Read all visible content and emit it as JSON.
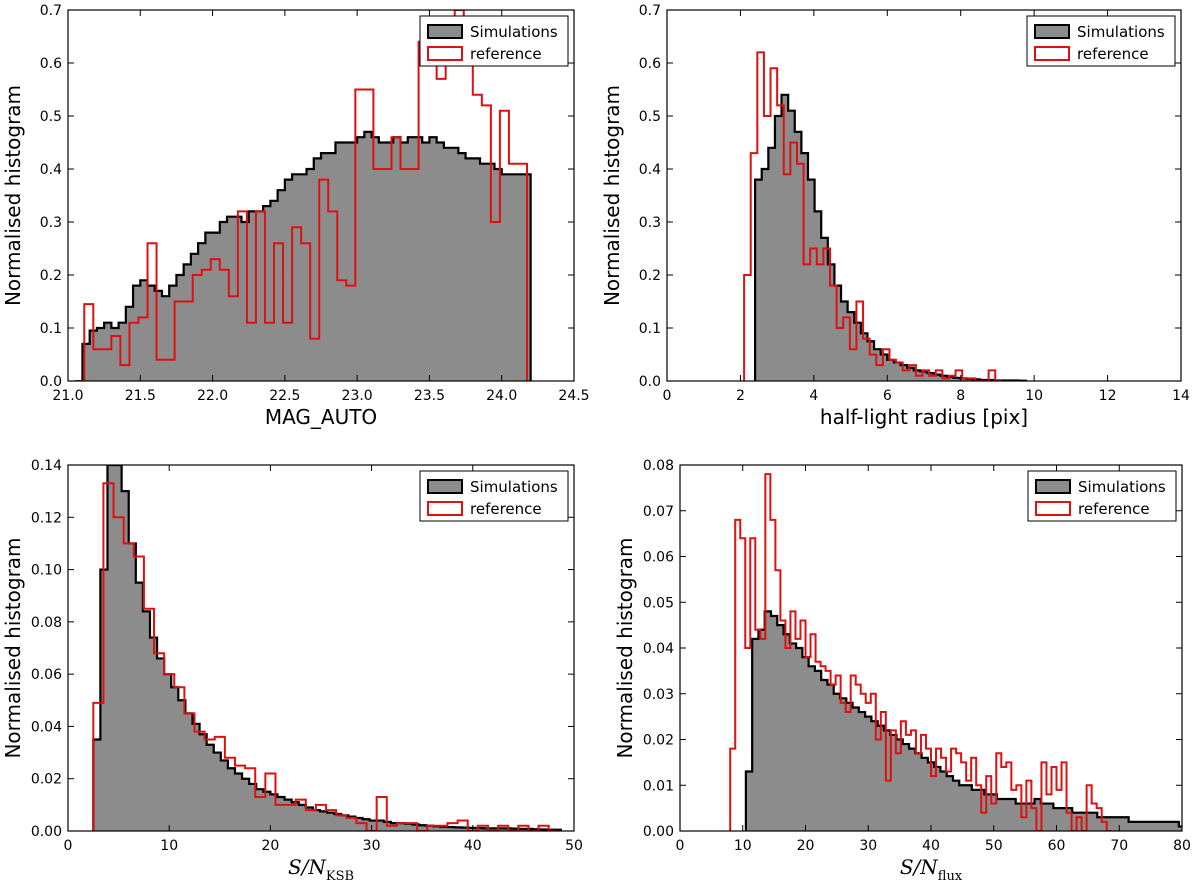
{
  "chart_data": [
    {
      "type": "histogram",
      "xlabel": "MAG_AUTO",
      "ylabel": "Normalised histogram",
      "xlim": [
        21.0,
        24.5
      ],
      "ylim": [
        0.0,
        0.7
      ],
      "xticks": [
        21.0,
        21.5,
        22.0,
        22.5,
        23.0,
        23.5,
        24.0,
        24.5
      ],
      "yticks": [
        0.0,
        0.1,
        0.2,
        0.3,
        0.4,
        0.5,
        0.6,
        0.7
      ],
      "legend": {
        "position": "top-right",
        "entries": [
          "Simulations",
          "reference"
        ]
      },
      "series": [
        {
          "name": "Simulations",
          "style": "filled",
          "color": "#8c8c8c",
          "edge": "#000000",
          "bins": {
            "start": 21.1,
            "step": 0.05
          },
          "values": [
            0.07,
            0.095,
            0.1,
            0.11,
            0.1,
            0.11,
            0.14,
            0.18,
            0.19,
            0.18,
            0.17,
            0.16,
            0.18,
            0.2,
            0.22,
            0.24,
            0.26,
            0.28,
            0.28,
            0.3,
            0.31,
            0.31,
            0.3,
            0.32,
            0.32,
            0.33,
            0.34,
            0.36,
            0.38,
            0.39,
            0.39,
            0.4,
            0.42,
            0.43,
            0.43,
            0.45,
            0.45,
            0.45,
            0.46,
            0.47,
            0.46,
            0.45,
            0.45,
            0.46,
            0.45,
            0.46,
            0.46,
            0.45,
            0.46,
            0.45,
            0.44,
            0.44,
            0.43,
            0.42,
            0.42,
            0.41,
            0.41,
            0.4,
            0.39,
            0.39,
            0.39,
            0.39
          ]
        },
        {
          "name": "reference",
          "style": "step",
          "color": "#dd1111",
          "bins": {
            "start": 21.05,
            "step": 0.0625
          },
          "values": [
            0.0,
            0.145,
            0.06,
            0.06,
            0.085,
            0.03,
            0.11,
            0.12,
            0.26,
            0.04,
            0.04,
            0.15,
            0.15,
            0.2,
            0.21,
            0.23,
            0.21,
            0.16,
            0.32,
            0.11,
            0.32,
            0.11,
            0.26,
            0.11,
            0.29,
            0.26,
            0.08,
            0.38,
            0.32,
            0.19,
            0.18,
            0.55,
            0.55,
            0.4,
            0.4,
            0.46,
            0.4,
            0.4,
            0.64,
            0.62,
            0.57,
            0.6,
            0.7,
            0.64,
            0.54,
            0.52,
            0.3,
            0.51,
            0.41,
            0.41
          ]
        }
      ]
    },
    {
      "type": "histogram",
      "xlabel": "half-light radius [pix]",
      "ylabel": "Normalised histogram",
      "xlim": [
        0,
        14
      ],
      "ylim": [
        0.0,
        0.7
      ],
      "xticks": [
        0,
        2,
        4,
        6,
        8,
        10,
        12,
        14
      ],
      "yticks": [
        0.0,
        0.1,
        0.2,
        0.3,
        0.4,
        0.5,
        0.6,
        0.7
      ],
      "legend": {
        "position": "top-right",
        "entries": [
          "Simulations",
          "reference"
        ]
      },
      "series": [
        {
          "name": "Simulations",
          "style": "filled",
          "color": "#8c8c8c",
          "edge": "#000000",
          "bins": {
            "start": 2.4,
            "step": 0.18
          },
          "values": [
            0.38,
            0.4,
            0.44,
            0.5,
            0.54,
            0.51,
            0.47,
            0.43,
            0.38,
            0.32,
            0.27,
            0.22,
            0.18,
            0.15,
            0.13,
            0.11,
            0.09,
            0.075,
            0.06,
            0.05,
            0.04,
            0.035,
            0.03,
            0.025,
            0.02,
            0.018,
            0.015,
            0.012,
            0.01,
            0.008,
            0.006,
            0.005,
            0.004,
            0.003,
            0.002,
            0.002,
            0.001,
            0.001,
            0.001,
            0.001,
            0.0005
          ]
        },
        {
          "name": "reference",
          "style": "step",
          "color": "#dd1111",
          "bins": {
            "start": 2.1,
            "step": 0.18
          },
          "values": [
            0.2,
            0.43,
            0.62,
            0.5,
            0.59,
            0.52,
            0.39,
            0.45,
            0.41,
            0.22,
            0.25,
            0.22,
            0.25,
            0.18,
            0.1,
            0.12,
            0.06,
            0.15,
            0.08,
            0.05,
            0.03,
            0.06,
            0.04,
            0.035,
            0.02,
            0.03,
            0.01,
            0.02,
            0.01,
            0.02,
            0.005,
            0.01,
            0.02,
            0.005,
            0.005,
            0.0,
            0.0,
            0.02,
            0.0
          ]
        }
      ]
    },
    {
      "type": "histogram",
      "xlabel": "S/N_KSB",
      "ylabel": "Normalised histogram",
      "xlim": [
        0,
        50
      ],
      "ylim": [
        0.0,
        0.14
      ],
      "xticks": [
        0,
        10,
        20,
        30,
        40,
        50
      ],
      "yticks": [
        0.0,
        0.02,
        0.04,
        0.06,
        0.08,
        0.1,
        0.12,
        0.14
      ],
      "legend": {
        "position": "top-right",
        "entries": [
          "Simulations",
          "reference"
        ]
      },
      "series": [
        {
          "name": "Simulations",
          "style": "filled",
          "color": "#8c8c8c",
          "edge": "#000000",
          "bins": {
            "start": 2.5,
            "step": 0.7
          },
          "values": [
            0.035,
            0.1,
            0.14,
            0.14,
            0.13,
            0.11,
            0.095,
            0.084,
            0.074,
            0.066,
            0.06,
            0.055,
            0.05,
            0.045,
            0.041,
            0.037,
            0.033,
            0.03,
            0.027,
            0.024,
            0.022,
            0.02,
            0.018,
            0.016,
            0.015,
            0.014,
            0.013,
            0.012,
            0.011,
            0.01,
            0.009,
            0.008,
            0.0075,
            0.007,
            0.0065,
            0.006,
            0.0055,
            0.005,
            0.0045,
            0.004,
            0.004,
            0.0035,
            0.003,
            0.003,
            0.0028,
            0.0025,
            0.0022,
            0.002,
            0.0018,
            0.0016,
            0.0015,
            0.0014,
            0.0013,
            0.0012,
            0.0011,
            0.001,
            0.001,
            0.001,
            0.001,
            0.0009,
            0.0008,
            0.0008,
            0.0007,
            0.0006,
            0.0005,
            0.0005
          ]
        },
        {
          "name": "reference",
          "style": "step",
          "color": "#dd1111",
          "bins": {
            "start": 2.5,
            "step": 1.0
          },
          "values": [
            0.049,
            0.133,
            0.12,
            0.11,
            0.105,
            0.085,
            0.068,
            0.06,
            0.055,
            0.045,
            0.038,
            0.035,
            0.036,
            0.028,
            0.025,
            0.024,
            0.013,
            0.022,
            0.01,
            0.01,
            0.012,
            0.008,
            0.01,
            0.008,
            0.006,
            0.005,
            0.003,
            0.0,
            0.013,
            0.002,
            0.003,
            0.003,
            0.0,
            0.002,
            0.002,
            0.003,
            0.004,
            0.0,
            0.002,
            0.0,
            0.002,
            0.0,
            0.002,
            0.0,
            0.002,
            0.0
          ]
        }
      ]
    },
    {
      "type": "histogram",
      "xlabel": "S/N_flux",
      "ylabel": "Normalised histogram",
      "xlim": [
        0,
        80
      ],
      "ylim": [
        0.0,
        0.08
      ],
      "xticks": [
        0,
        10,
        20,
        30,
        40,
        50,
        60,
        70,
        80
      ],
      "yticks": [
        0.0,
        0.01,
        0.02,
        0.03,
        0.04,
        0.05,
        0.06,
        0.07,
        0.08
      ],
      "legend": {
        "position": "top-right",
        "entries": [
          "Simulations",
          "reference"
        ]
      },
      "series": [
        {
          "name": "Simulations",
          "style": "filled",
          "color": "#8c8c8c",
          "edge": "#000000",
          "bins": {
            "start": 10.5,
            "step": 1.0
          },
          "values": [
            0.013,
            0.042,
            0.044,
            0.048,
            0.047,
            0.045,
            0.043,
            0.041,
            0.04,
            0.038,
            0.036,
            0.035,
            0.033,
            0.032,
            0.03,
            0.029,
            0.028,
            0.027,
            0.026,
            0.025,
            0.024,
            0.023,
            0.022,
            0.021,
            0.02,
            0.019,
            0.018,
            0.017,
            0.016,
            0.015,
            0.014,
            0.013,
            0.012,
            0.011,
            0.01,
            0.01,
            0.009,
            0.009,
            0.008,
            0.008,
            0.007,
            0.007,
            0.007,
            0.006,
            0.006,
            0.006,
            0.007,
            0.006,
            0.006,
            0.005,
            0.005,
            0.005,
            0.004,
            0.004,
            0.004,
            0.004,
            0.003,
            0.003,
            0.003,
            0.003,
            0.003,
            0.002,
            0.002,
            0.002,
            0.002,
            0.002,
            0.002,
            0.002,
            0.002,
            0.001
          ]
        },
        {
          "name": "reference",
          "style": "step",
          "color": "#dd1111",
          "bins": {
            "start": 8.0,
            "step": 0.8
          },
          "values": [
            0.018,
            0.068,
            0.064,
            0.04,
            0.064,
            0.044,
            0.042,
            0.078,
            0.068,
            0.057,
            0.046,
            0.04,
            0.048,
            0.042,
            0.046,
            0.038,
            0.043,
            0.037,
            0.036,
            0.035,
            0.032,
            0.034,
            0.028,
            0.026,
            0.034,
            0.032,
            0.03,
            0.028,
            0.03,
            0.02,
            0.026,
            0.011,
            0.022,
            0.017,
            0.024,
            0.021,
            0.022,
            0.017,
            0.021,
            0.018,
            0.012,
            0.018,
            0.016,
            0.013,
            0.018,
            0.017,
            0.015,
            0.011,
            0.016,
            0.01,
            0.004,
            0.012,
            0.006,
            0.017,
            0.014,
            0.015,
            0.009,
            0.01,
            0.003,
            0.011,
            0.005,
            0.0,
            0.015,
            0.008,
            0.014,
            0.009,
            0.015,
            0.004,
            0.0,
            0.003,
            0.0,
            0.01,
            0.006,
            0.005,
            0.002,
            0.0
          ]
        }
      ]
    }
  ]
}
